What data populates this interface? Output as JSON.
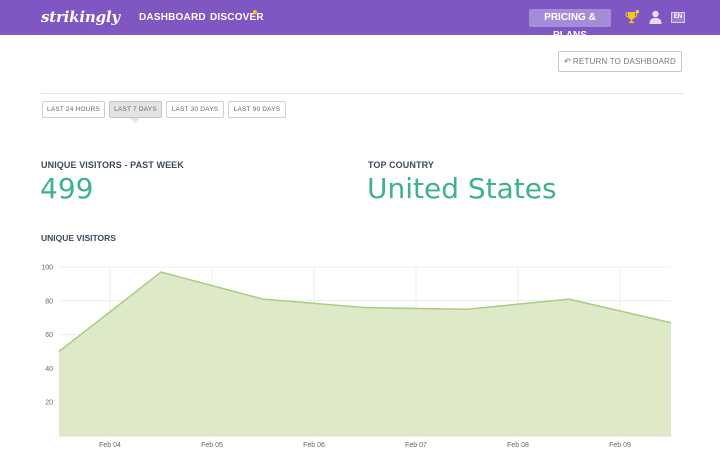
{
  "header": {
    "logo": "strikingly",
    "nav": [
      {
        "label": "DASHBOARD"
      },
      {
        "label": "DISCOVER"
      }
    ],
    "pricing_label": "PRICING & PLANS",
    "lang": "EN",
    "brand_color": "#7f57c2",
    "notification_color": "#f5c518"
  },
  "toolbar": {
    "return_label": "RETURN TO DASHBOARD"
  },
  "ranges": [
    {
      "label": "LAST 24 HOURS",
      "active": false
    },
    {
      "label": "LAST 7 DAYS",
      "active": true
    },
    {
      "label": "LAST 30 DAYS",
      "active": false
    },
    {
      "label": "LAST 90 DAYS",
      "active": false
    }
  ],
  "stats": {
    "visitors_label": "UNIQUE VISITORS - PAST WEEK",
    "visitors_value": "499",
    "country_label": "TOP COUNTRY",
    "country_value": "United States",
    "accent_color": "#3fb18f"
  },
  "chart_title": "UNIQUE VISITORS",
  "chart_data": {
    "type": "area",
    "title": "UNIQUE VISITORS",
    "xlabel": "",
    "ylabel": "",
    "ylim": [
      0,
      100
    ],
    "y_ticks": [
      20,
      40,
      60,
      80,
      100
    ],
    "x_ticks": [
      "Feb 04",
      "Feb 05",
      "Feb 06",
      "Feb 07",
      "Feb 08",
      "Feb 09"
    ],
    "grid": true,
    "x_range": [
      0,
      6
    ],
    "series": [
      {
        "x": [
          0,
          1,
          2,
          3,
          4,
          5,
          6
        ],
        "values": [
          50,
          97,
          81,
          76,
          75,
          81,
          67
        ]
      }
    ],
    "fill_color": "#dbe8c4",
    "line_color": "#a8cd7e"
  }
}
